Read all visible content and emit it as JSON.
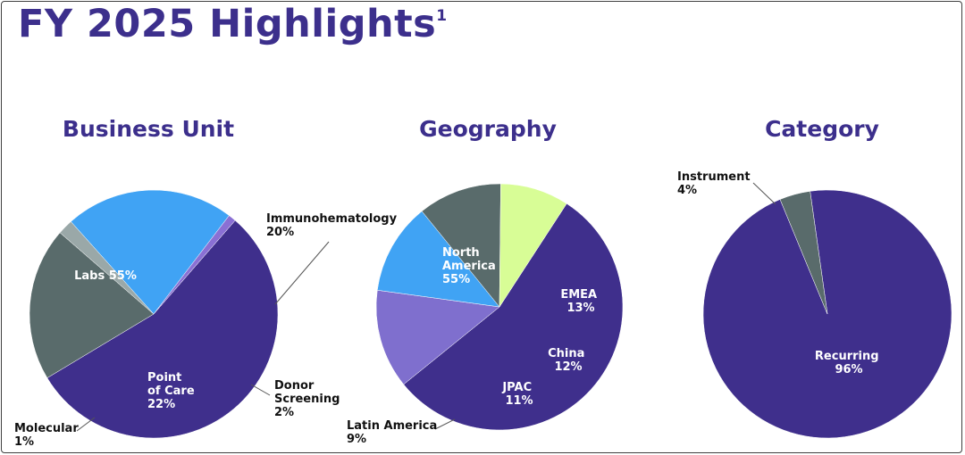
{
  "header": {
    "title": "FY 2025 Highlights",
    "footnote": "1"
  },
  "chart_data": [
    {
      "type": "pie",
      "title": "Business Unit",
      "slices": [
        {
          "label": "Labs",
          "value": 55,
          "display": "Labs 55%",
          "color": "#3f2f8c",
          "label_pos": "inside"
        },
        {
          "label": "Immunohematology",
          "value": 20,
          "display": "Immunohematology 20%",
          "color": "#596b6b",
          "label_pos": "outside"
        },
        {
          "label": "Donor Screening",
          "value": 2,
          "display": "Donor Screening 2%",
          "color": "#9aa8a8",
          "label_pos": "outside"
        },
        {
          "label": "Point of Care",
          "value": 22,
          "display": "Point of Care 22%",
          "color": "#40a3f4",
          "label_pos": "inside"
        },
        {
          "label": "Molecular",
          "value": 1,
          "display": "Molecular 1%",
          "color": "#8a70d4",
          "label_pos": "outside"
        }
      ]
    },
    {
      "type": "pie",
      "title": "Geography",
      "slices": [
        {
          "label": "North America",
          "value": 55,
          "display": "North America 55%",
          "color": "#3f2f8c",
          "label_pos": "inside"
        },
        {
          "label": "EMEA",
          "value": 13,
          "display": "EMEA 13%",
          "color": "#7f6fce",
          "label_pos": "inside"
        },
        {
          "label": "China",
          "value": 12,
          "display": "China 12%",
          "color": "#40a3f4",
          "label_pos": "inside"
        },
        {
          "label": "JPAC",
          "value": 11,
          "display": "JPAC 11%",
          "color": "#596b6b",
          "label_pos": "inside"
        },
        {
          "label": "Latin America",
          "value": 9,
          "display": "Latin America 9%",
          "color": "#d8fd96",
          "label_pos": "outside"
        }
      ]
    },
    {
      "type": "pie",
      "title": "Category",
      "slices": [
        {
          "label": "Recurring",
          "value": 96,
          "display": "Recurring 96%",
          "color": "#3f2f8c",
          "label_pos": "inside"
        },
        {
          "label": "Instrument",
          "value": 4,
          "display": "Instrument 4%",
          "color": "#596b6b",
          "label_pos": "outside"
        }
      ]
    }
  ]
}
